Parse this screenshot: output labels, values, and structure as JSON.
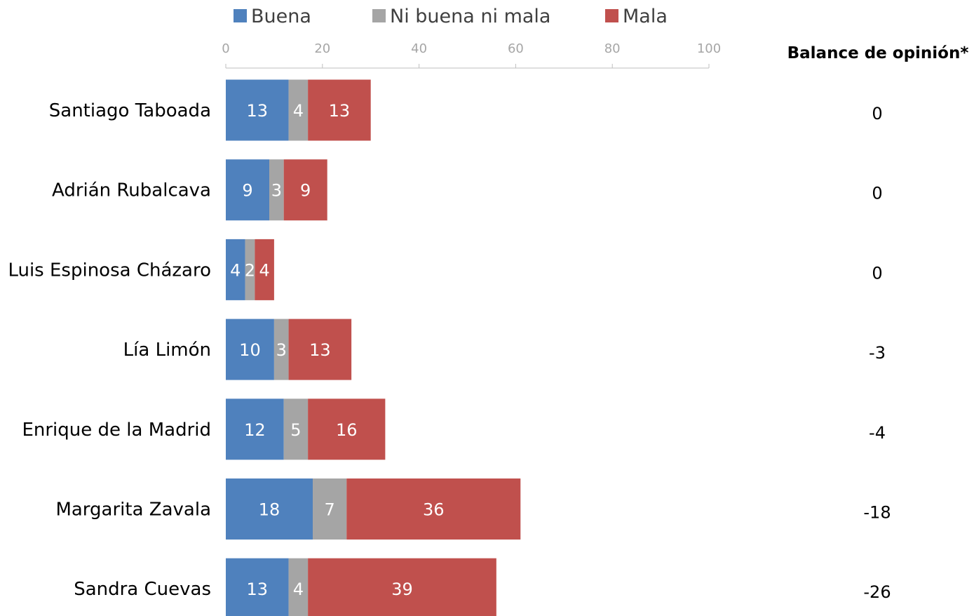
{
  "chart_data": {
    "type": "bar",
    "orientation": "horizontal",
    "stacked": true,
    "categories": [
      "Santiago Taboada",
      "Adrián Rubalcava",
      "Luis Espinosa Cházaro",
      "Lía Limón",
      "Enrique de la Madrid",
      "Margarita Zavala",
      "Sandra Cuevas"
    ],
    "series": [
      {
        "name": "Buena",
        "color": "#4f81bd",
        "values": [
          13,
          9,
          4,
          10,
          12,
          18,
          13
        ]
      },
      {
        "name": "Ni buena ni mala",
        "color": "#a5a5a5",
        "values": [
          4,
          3,
          2,
          3,
          5,
          7,
          4
        ]
      },
      {
        "name": "Mala",
        "color": "#c0504d",
        "values": [
          13,
          9,
          4,
          13,
          16,
          36,
          39
        ]
      }
    ],
    "xlim": [
      0,
      100
    ],
    "xticks": [
      0,
      20,
      40,
      60,
      80,
      100
    ],
    "axis_position": "top",
    "legend_position": "top",
    "grid": false,
    "balance": {
      "title": "Balance de opinión*",
      "values": [
        "0",
        "0",
        "0",
        "-3",
        "-4",
        "-18",
        "-26"
      ]
    }
  }
}
